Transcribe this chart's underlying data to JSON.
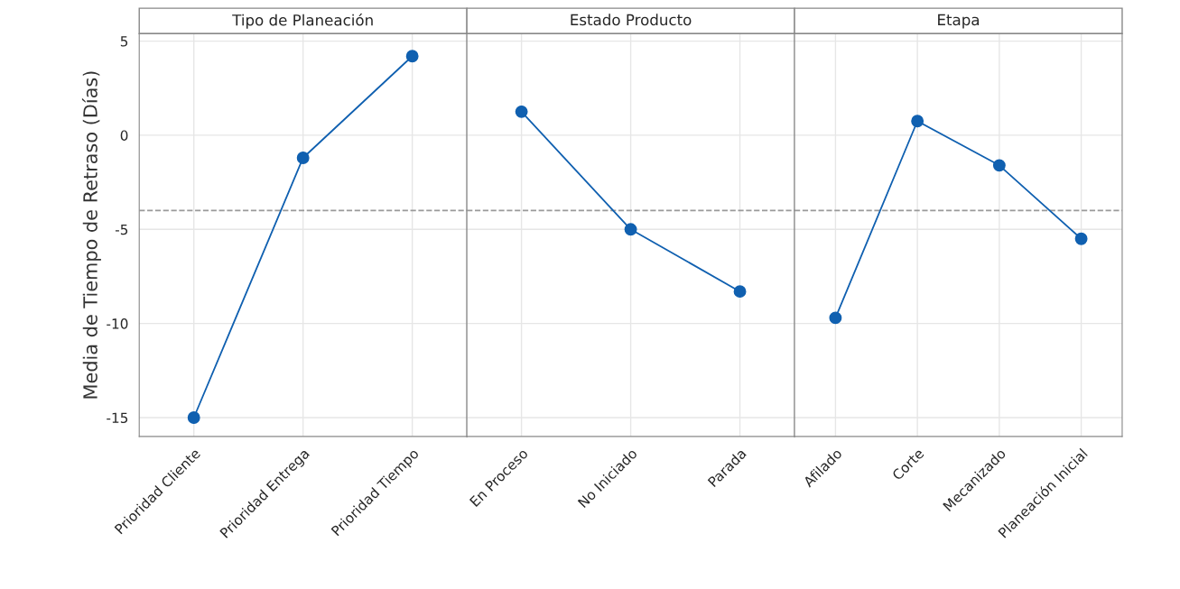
{
  "chart_data": [
    {
      "type": "line",
      "title": "Tipo de Planeación",
      "ylabel": "Media de Tiempo de Retraso (Días)",
      "categories": [
        "Prioridad Cliente",
        "Prioridad Entrega",
        "Prioridad Tiempo"
      ],
      "series": [
        {
          "color": "#1060b0",
          "values": [
            -15.0,
            -1.2,
            4.2
          ]
        }
      ],
      "ylim": [
        -16,
        5.4
      ],
      "yticks": [
        5,
        0,
        -5,
        -10,
        -15
      ],
      "grid": true,
      "marker": "circle",
      "line_style": "solid",
      "ref_lines": [
        {
          "axis": "y",
          "value": -4.0,
          "color": "#999999",
          "line_style": "dashed"
        }
      ]
    },
    {
      "type": "line",
      "title": "Estado Producto",
      "categories": [
        "En Proceso",
        "No Iniciado",
        "Parada"
      ],
      "series": [
        {
          "color": "#1060b0",
          "values": [
            1.25,
            -5.0,
            -8.3
          ]
        }
      ],
      "ylim": [
        -16,
        5.4
      ],
      "yticks": [
        5,
        0,
        -5,
        -10,
        -15
      ],
      "tick_labels": "x",
      "grid": true,
      "marker": "circle",
      "line_style": "solid",
      "ref_lines": [
        {
          "axis": "y",
          "value": -4.0,
          "color": "#999999",
          "line_style": "dashed"
        }
      ]
    },
    {
      "type": "line",
      "title": "Etapa",
      "categories": [
        "Afilado",
        "Corte",
        "Mecanizado",
        "Planeación Inicial"
      ],
      "series": [
        {
          "color": "#1060b0",
          "values": [
            -9.7,
            0.75,
            -1.6,
            -5.5
          ]
        }
      ],
      "ylim": [
        -16,
        5.4
      ],
      "yticks": [
        5,
        0,
        -5,
        -10,
        -15
      ],
      "tick_labels": "x",
      "grid": true,
      "marker": "circle",
      "line_style": "solid",
      "ref_lines": [
        {
          "axis": "y",
          "value": -4.0,
          "color": "#999999",
          "line_style": "dashed"
        }
      ]
    }
  ]
}
